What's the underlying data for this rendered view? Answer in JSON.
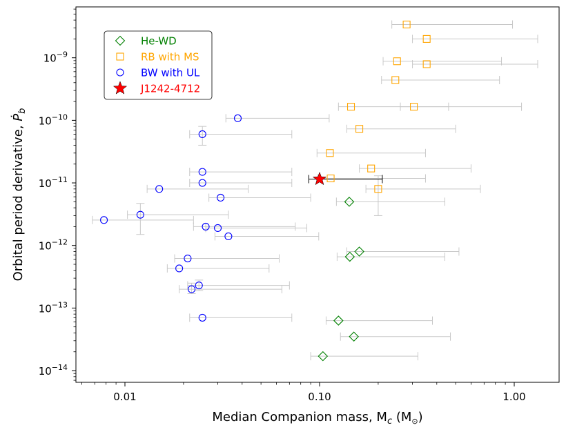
{
  "chart_data": {
    "type": "scatter",
    "title": "",
    "xlabel": "Median Companion mass, M",
    "xlabel_sub": "c",
    "xlabel_unit_open": " (M",
    "xlabel_unit_sub": "⊙",
    "xlabel_unit_close": ")",
    "ylabel": "Orbital period derivative, ",
    "ylabel_symbol": "Ṗ",
    "ylabel_sub": "b",
    "xscale": "log",
    "yscale": "log",
    "xlim": [
      0.0056,
      1.7
    ],
    "ylim": [
      6.5e-15,
      6.5e-09
    ],
    "grid": false,
    "legend_position": "upper-left",
    "x_ticks": [
      {
        "value": 0.01,
        "label": "0.01"
      },
      {
        "value": 0.1,
        "label": "0.10"
      },
      {
        "value": 1.0,
        "label": "1.00"
      }
    ],
    "y_ticks": [
      {
        "value": 1e-14,
        "base": "10",
        "exp": "−14"
      },
      {
        "value": 1e-13,
        "base": "10",
        "exp": "−13"
      },
      {
        "value": 1e-12,
        "base": "10",
        "exp": "−12"
      },
      {
        "value": 1e-11,
        "base": "10",
        "exp": "−11"
      },
      {
        "value": 1e-10,
        "base": "10",
        "exp": "−10"
      },
      {
        "value": 1e-09,
        "base": "10",
        "exp": "−9"
      }
    ],
    "series": [
      {
        "name": "He-WD",
        "marker": "diamond",
        "color": "#008000",
        "points": [
          {
            "x": 0.142,
            "y": 5e-12,
            "xerr": [
              0.122,
              0.44
            ]
          },
          {
            "x": 0.16,
            "y": 8e-13,
            "xerr": [
              0.138,
              0.52
            ]
          },
          {
            "x": 0.143,
            "y": 6.6e-13,
            "xerr": [
              0.123,
              0.44
            ]
          },
          {
            "x": 0.125,
            "y": 6.3e-14,
            "xerr": [
              0.108,
              0.38
            ]
          },
          {
            "x": 0.15,
            "y": 3.5e-14,
            "xerr": [
              0.128,
              0.47
            ]
          },
          {
            "x": 0.104,
            "y": 1.7e-14,
            "xerr": [
              0.09,
              0.32
            ]
          }
        ]
      },
      {
        "name": "RB with MS",
        "marker": "square",
        "color": "#FFA500",
        "points": [
          {
            "x": 0.28,
            "y": 3.4e-09,
            "xerr": [
              0.235,
              0.98
            ]
          },
          {
            "x": 0.355,
            "y": 2e-09,
            "xerr": [
              0.3,
              1.32
            ]
          },
          {
            "x": 0.25,
            "y": 8.8e-10,
            "xerr": [
              0.212,
              0.86
            ]
          },
          {
            "x": 0.355,
            "y": 7.9e-10,
            "xerr": [
              0.3,
              1.32
            ]
          },
          {
            "x": 0.245,
            "y": 4.4e-10,
            "xerr": [
              0.208,
              0.84
            ]
          },
          {
            "x": 0.145,
            "y": 1.65e-10,
            "xerr": [
              0.125,
              0.46
            ]
          },
          {
            "x": 0.305,
            "y": 1.65e-10,
            "xerr": [
              0.26,
              1.09
            ]
          },
          {
            "x": 0.16,
            "y": 7.3e-11,
            "xerr": [
              0.138,
              0.5
            ]
          },
          {
            "x": 0.113,
            "y": 3e-11,
            "xerr": [
              0.097,
              0.35
            ]
          },
          {
            "x": 0.184,
            "y": 1.7e-11,
            "xerr": [
              0.16,
              0.6
            ]
          },
          {
            "x": 0.114,
            "y": 1.18e-11,
            "xerr": [
              0.098,
              0.35
            ]
          },
          {
            "x": 0.2,
            "y": 8e-12,
            "xerr": [
              0.173,
              0.67
            ],
            "yerr": [
              3e-12,
              1.3e-11
            ]
          }
        ]
      },
      {
        "name": "BW with UL",
        "marker": "circle",
        "color": "#0000FF",
        "points": [
          {
            "x": 0.038,
            "y": 1.08e-10,
            "xerr": [
              0.033,
              0.112
            ]
          },
          {
            "x": 0.025,
            "y": 6e-11,
            "xerr": [
              0.0215,
              0.072
            ],
            "yerr": [
              4e-11,
              8e-11
            ]
          },
          {
            "x": 0.025,
            "y": 1.5e-11,
            "xerr": [
              0.0215,
              0.072
            ]
          },
          {
            "x": 0.025,
            "y": 1e-11,
            "xerr": [
              0.0215,
              0.072
            ]
          },
          {
            "x": 0.015,
            "y": 8e-12,
            "xerr": [
              0.013,
              0.043
            ]
          },
          {
            "x": 0.031,
            "y": 5.8e-12,
            "xerr": [
              0.027,
              0.09
            ]
          },
          {
            "x": 0.012,
            "y": 3.1e-12,
            "xerr": [
              0.0103,
              0.034
            ],
            "yerr": [
              1.5e-12,
              4.7e-12
            ]
          },
          {
            "x": 0.0078,
            "y": 2.55e-12,
            "xerr": [
              0.0068,
              0.0225
            ]
          },
          {
            "x": 0.026,
            "y": 2e-12,
            "xerr": [
              0.0225,
              0.075
            ]
          },
          {
            "x": 0.03,
            "y": 1.9e-12,
            "xerr": [
              0.026,
              0.086
            ]
          },
          {
            "x": 0.034,
            "y": 1.4e-12,
            "xerr": [
              0.029,
              0.099
            ]
          },
          {
            "x": 0.021,
            "y": 6.2e-13,
            "xerr": [
              0.018,
              0.062
            ]
          },
          {
            "x": 0.019,
            "y": 4.3e-13,
            "xerr": [
              0.0165,
              0.055
            ]
          },
          {
            "x": 0.024,
            "y": 2.3e-13,
            "xerr": [
              0.021,
              0.07
            ],
            "yerr": [
              1.9e-13,
              2.8e-13
            ]
          },
          {
            "x": 0.022,
            "y": 2e-13,
            "xerr": [
              0.019,
              0.064
            ],
            "yerr": [
              1.7e-13,
              2.5e-13
            ]
          },
          {
            "x": 0.025,
            "y": 7e-14,
            "xerr": [
              0.0215,
              0.072
            ]
          }
        ]
      },
      {
        "name": "J1242-4712",
        "marker": "star",
        "color": "#FF0000",
        "points": [
          {
            "x": 0.1,
            "y": 1.15e-11,
            "xerr": [
              0.088,
              0.21
            ]
          }
        ]
      }
    ]
  }
}
